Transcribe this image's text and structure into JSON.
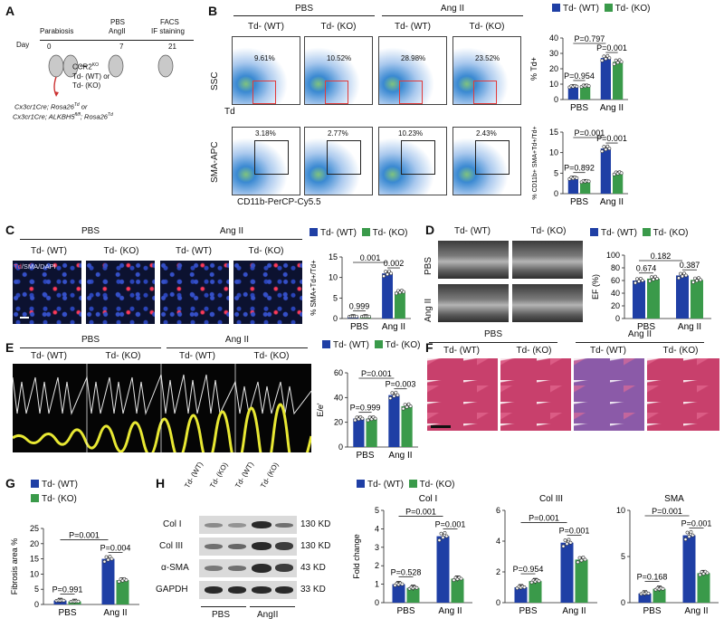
{
  "legend": {
    "wt": "Td- (WT)",
    "ko": "Td- (KO)",
    "wt_color": "#1f3fa5",
    "ko_color": "#3a9a4a"
  },
  "groups": {
    "pbs": "PBS",
    "ang": "Ang II",
    "angii": "AngII"
  },
  "A": {
    "label": "A",
    "day": "Day",
    "d0": "0",
    "d7": "7",
    "d21": "21",
    "parabiosis": "Parabiosis",
    "pbs": "PBS",
    "angii": "AngII",
    "facs": "FACS",
    "if": "IF staining",
    "ccr2": "CCR2",
    "ko_sup": "KO",
    "wt": "Td- (WT) or",
    "ko": "Td- (KO)",
    "g1": "Cx3cr1Cre; Rosa26",
    "g1s": "Td",
    "or": " or",
    "g2": "Cx3cr1Cre; ALKBH5",
    "g2s": "fl/fl",
    "g3": "; Rosa26",
    "g3s": "Td"
  },
  "B": {
    "label": "B",
    "cols": [
      "Td- (WT)",
      "Td- (KO)",
      "Td- (WT)",
      "Td- (KO)"
    ],
    "top_pct": [
      "9.61%",
      "10.52%",
      "28.98%",
      "23.52%"
    ],
    "bot_pct": [
      "3.18%",
      "2.77%",
      "10.23%",
      "2.43%"
    ],
    "ssc": "SSC",
    "td": "Td",
    "sma": "SMA-APC",
    "cd11b": "CD11b-PerCP-Cy5.5"
  },
  "C": {
    "label": "C",
    "cols": [
      "Td- (WT)",
      "Td- (KO)",
      "Td- (WT)",
      "Td- (KO)"
    ],
    "stain_td": "Td",
    "stain_rest": "/SMA/DAPI"
  },
  "D": {
    "label": "D",
    "cols": [
      "Td- (WT)",
      "Td- (KO)"
    ],
    "rows": [
      "PBS",
      "Ang II"
    ]
  },
  "E": {
    "label": "E",
    "cols": [
      "Td- (WT)",
      "Td- (KO)",
      "Td- (WT)",
      "Td- (KO)"
    ]
  },
  "F": {
    "label": "F",
    "cols": [
      "Td- (WT)",
      "Td- (KO)",
      "Td- (WT)",
      "Td- (KO)"
    ]
  },
  "G": {
    "label": "G"
  },
  "H": {
    "label": "H",
    "lanes": [
      "Td- (WT)",
      "Td- (KO)",
      "Td- (WT)",
      "Td- (KO)"
    ],
    "rows": [
      "Col I",
      "Col III",
      "α-SMA",
      "GAPDH"
    ],
    "kd": [
      "130 KD",
      "130 KD",
      "43 KD",
      "33 KD"
    ]
  },
  "chart_data": [
    {
      "id": "B-td",
      "type": "bar",
      "categories": [
        "PBS",
        "Ang II"
      ],
      "ylabel": "% Td+",
      "ylim": [
        0,
        40
      ],
      "yticks": [
        0,
        10,
        20,
        30,
        40
      ],
      "series": [
        {
          "name": "Td- (WT)",
          "values": [
            8.5,
            27
          ]
        },
        {
          "name": "Td- (KO)",
          "values": [
            8.8,
            24.5
          ]
        }
      ],
      "annotations": [
        {
          "text": "P=0.954",
          "between": "PBS WT-KO"
        },
        {
          "text": "P=0.797",
          "between": "Ang II WT-KO"
        },
        {
          "text": "P=0.001",
          "between": "WT PBS-Ang II"
        }
      ]
    },
    {
      "id": "B-sma",
      "type": "bar",
      "categories": [
        "PBS",
        "Ang II"
      ],
      "ylabel": "% CD11b+ SMA+Td+/Td+",
      "ylim": [
        0,
        15
      ],
      "yticks": [
        0,
        5,
        10,
        15
      ],
      "series": [
        {
          "name": "Td- (WT)",
          "values": [
            3.8,
            11
          ]
        },
        {
          "name": "Td- (KO)",
          "values": [
            3,
            5
          ]
        }
      ],
      "annotations": [
        {
          "text": "P=0.892"
        },
        {
          "text": "P=0.001"
        },
        {
          "text": "P=0.001"
        }
      ]
    },
    {
      "id": "C",
      "type": "bar",
      "categories": [
        "PBS",
        "Ang II"
      ],
      "ylabel": "% SMA+Td+/Td+",
      "ylim": [
        0,
        15
      ],
      "yticks": [
        0,
        5,
        10,
        15
      ],
      "series": [
        {
          "name": "Td- (WT)",
          "values": [
            0.5,
            11
          ]
        },
        {
          "name": "Td- (KO)",
          "values": [
            0.5,
            6.5
          ]
        }
      ],
      "annotations": [
        {
          "text": "0.999"
        },
        {
          "text": "0.001"
        },
        {
          "text": "0.002"
        }
      ]
    },
    {
      "id": "D",
      "type": "bar",
      "categories": [
        "PBS",
        "Ang II"
      ],
      "ylabel": "EF (%)",
      "ylim": [
        0,
        100
      ],
      "yticks": [
        0,
        20,
        40,
        60,
        80,
        100
      ],
      "series": [
        {
          "name": "Td- (WT)",
          "values": [
            60,
            68
          ]
        },
        {
          "name": "Td- (KO)",
          "values": [
            63,
            61
          ]
        }
      ],
      "annotations": [
        {
          "text": "0.674"
        },
        {
          "text": "0.182"
        },
        {
          "text": "0.387"
        }
      ]
    },
    {
      "id": "E",
      "type": "bar",
      "categories": [
        "PBS",
        "Ang II"
      ],
      "ylabel": "E/e'",
      "ylim": [
        0,
        60
      ],
      "yticks": [
        0,
        20,
        40,
        60
      ],
      "series": [
        {
          "name": "Td- (WT)",
          "values": [
            23,
            42
          ]
        },
        {
          "name": "Td- (KO)",
          "values": [
            23,
            33
          ]
        }
      ],
      "annotations": [
        {
          "text": "P=0.999"
        },
        {
          "text": "P=0.001"
        },
        {
          "text": "P=0.003"
        }
      ]
    },
    {
      "id": "G",
      "type": "bar",
      "categories": [
        "PBS",
        "Ang II"
      ],
      "ylabel": "Fibrosis area %",
      "ylim": [
        0,
        25
      ],
      "yticks": [
        0,
        5,
        10,
        15,
        20,
        25
      ],
      "series": [
        {
          "name": "Td- (WT)",
          "values": [
            1.3,
            15
          ]
        },
        {
          "name": "Td- (KO)",
          "values": [
            1,
            8
          ]
        }
      ],
      "annotations": [
        {
          "text": "P=0.991"
        },
        {
          "text": "P=0.001"
        },
        {
          "text": "P=0.004"
        }
      ]
    },
    {
      "id": "H-col1",
      "type": "bar",
      "title": "Col I",
      "categories": [
        "PBS",
        "Ang II"
      ],
      "ylabel": "Fold change",
      "ylim": [
        0,
        5
      ],
      "yticks": [
        0,
        1,
        2,
        3,
        4,
        5
      ],
      "series": [
        {
          "name": "Td- (WT)",
          "values": [
            1,
            3.6
          ]
        },
        {
          "name": "Td- (KO)",
          "values": [
            0.8,
            1.3
          ]
        }
      ],
      "annotations": [
        {
          "text": "P=0.528"
        },
        {
          "text": "P=0.001"
        },
        {
          "text": "P=0.001"
        }
      ]
    },
    {
      "id": "H-col3",
      "type": "bar",
      "title": "Col III",
      "categories": [
        "PBS",
        "Ang II"
      ],
      "ylabel": "",
      "ylim": [
        0,
        6
      ],
      "yticks": [
        0,
        2,
        4,
        6
      ],
      "series": [
        {
          "name": "Td- (WT)",
          "values": [
            1,
            3.9
          ]
        },
        {
          "name": "Td- (KO)",
          "values": [
            1.4,
            2.8
          ]
        }
      ],
      "annotations": [
        {
          "text": "P=0.954"
        },
        {
          "text": "P=0.001"
        },
        {
          "text": "P=0.001"
        }
      ]
    },
    {
      "id": "H-sma",
      "type": "bar",
      "title": "SMA",
      "categories": [
        "PBS",
        "Ang II"
      ],
      "ylabel": "",
      "ylim": [
        0,
        10
      ],
      "yticks": [
        0,
        5,
        10
      ],
      "series": [
        {
          "name": "Td- (WT)",
          "values": [
            1,
            7.3
          ]
        },
        {
          "name": "Td- (KO)",
          "values": [
            1.5,
            3.2
          ]
        }
      ],
      "annotations": [
        {
          "text": "P=0.168"
        },
        {
          "text": "P=0.001"
        },
        {
          "text": "P=0.001"
        }
      ]
    }
  ]
}
